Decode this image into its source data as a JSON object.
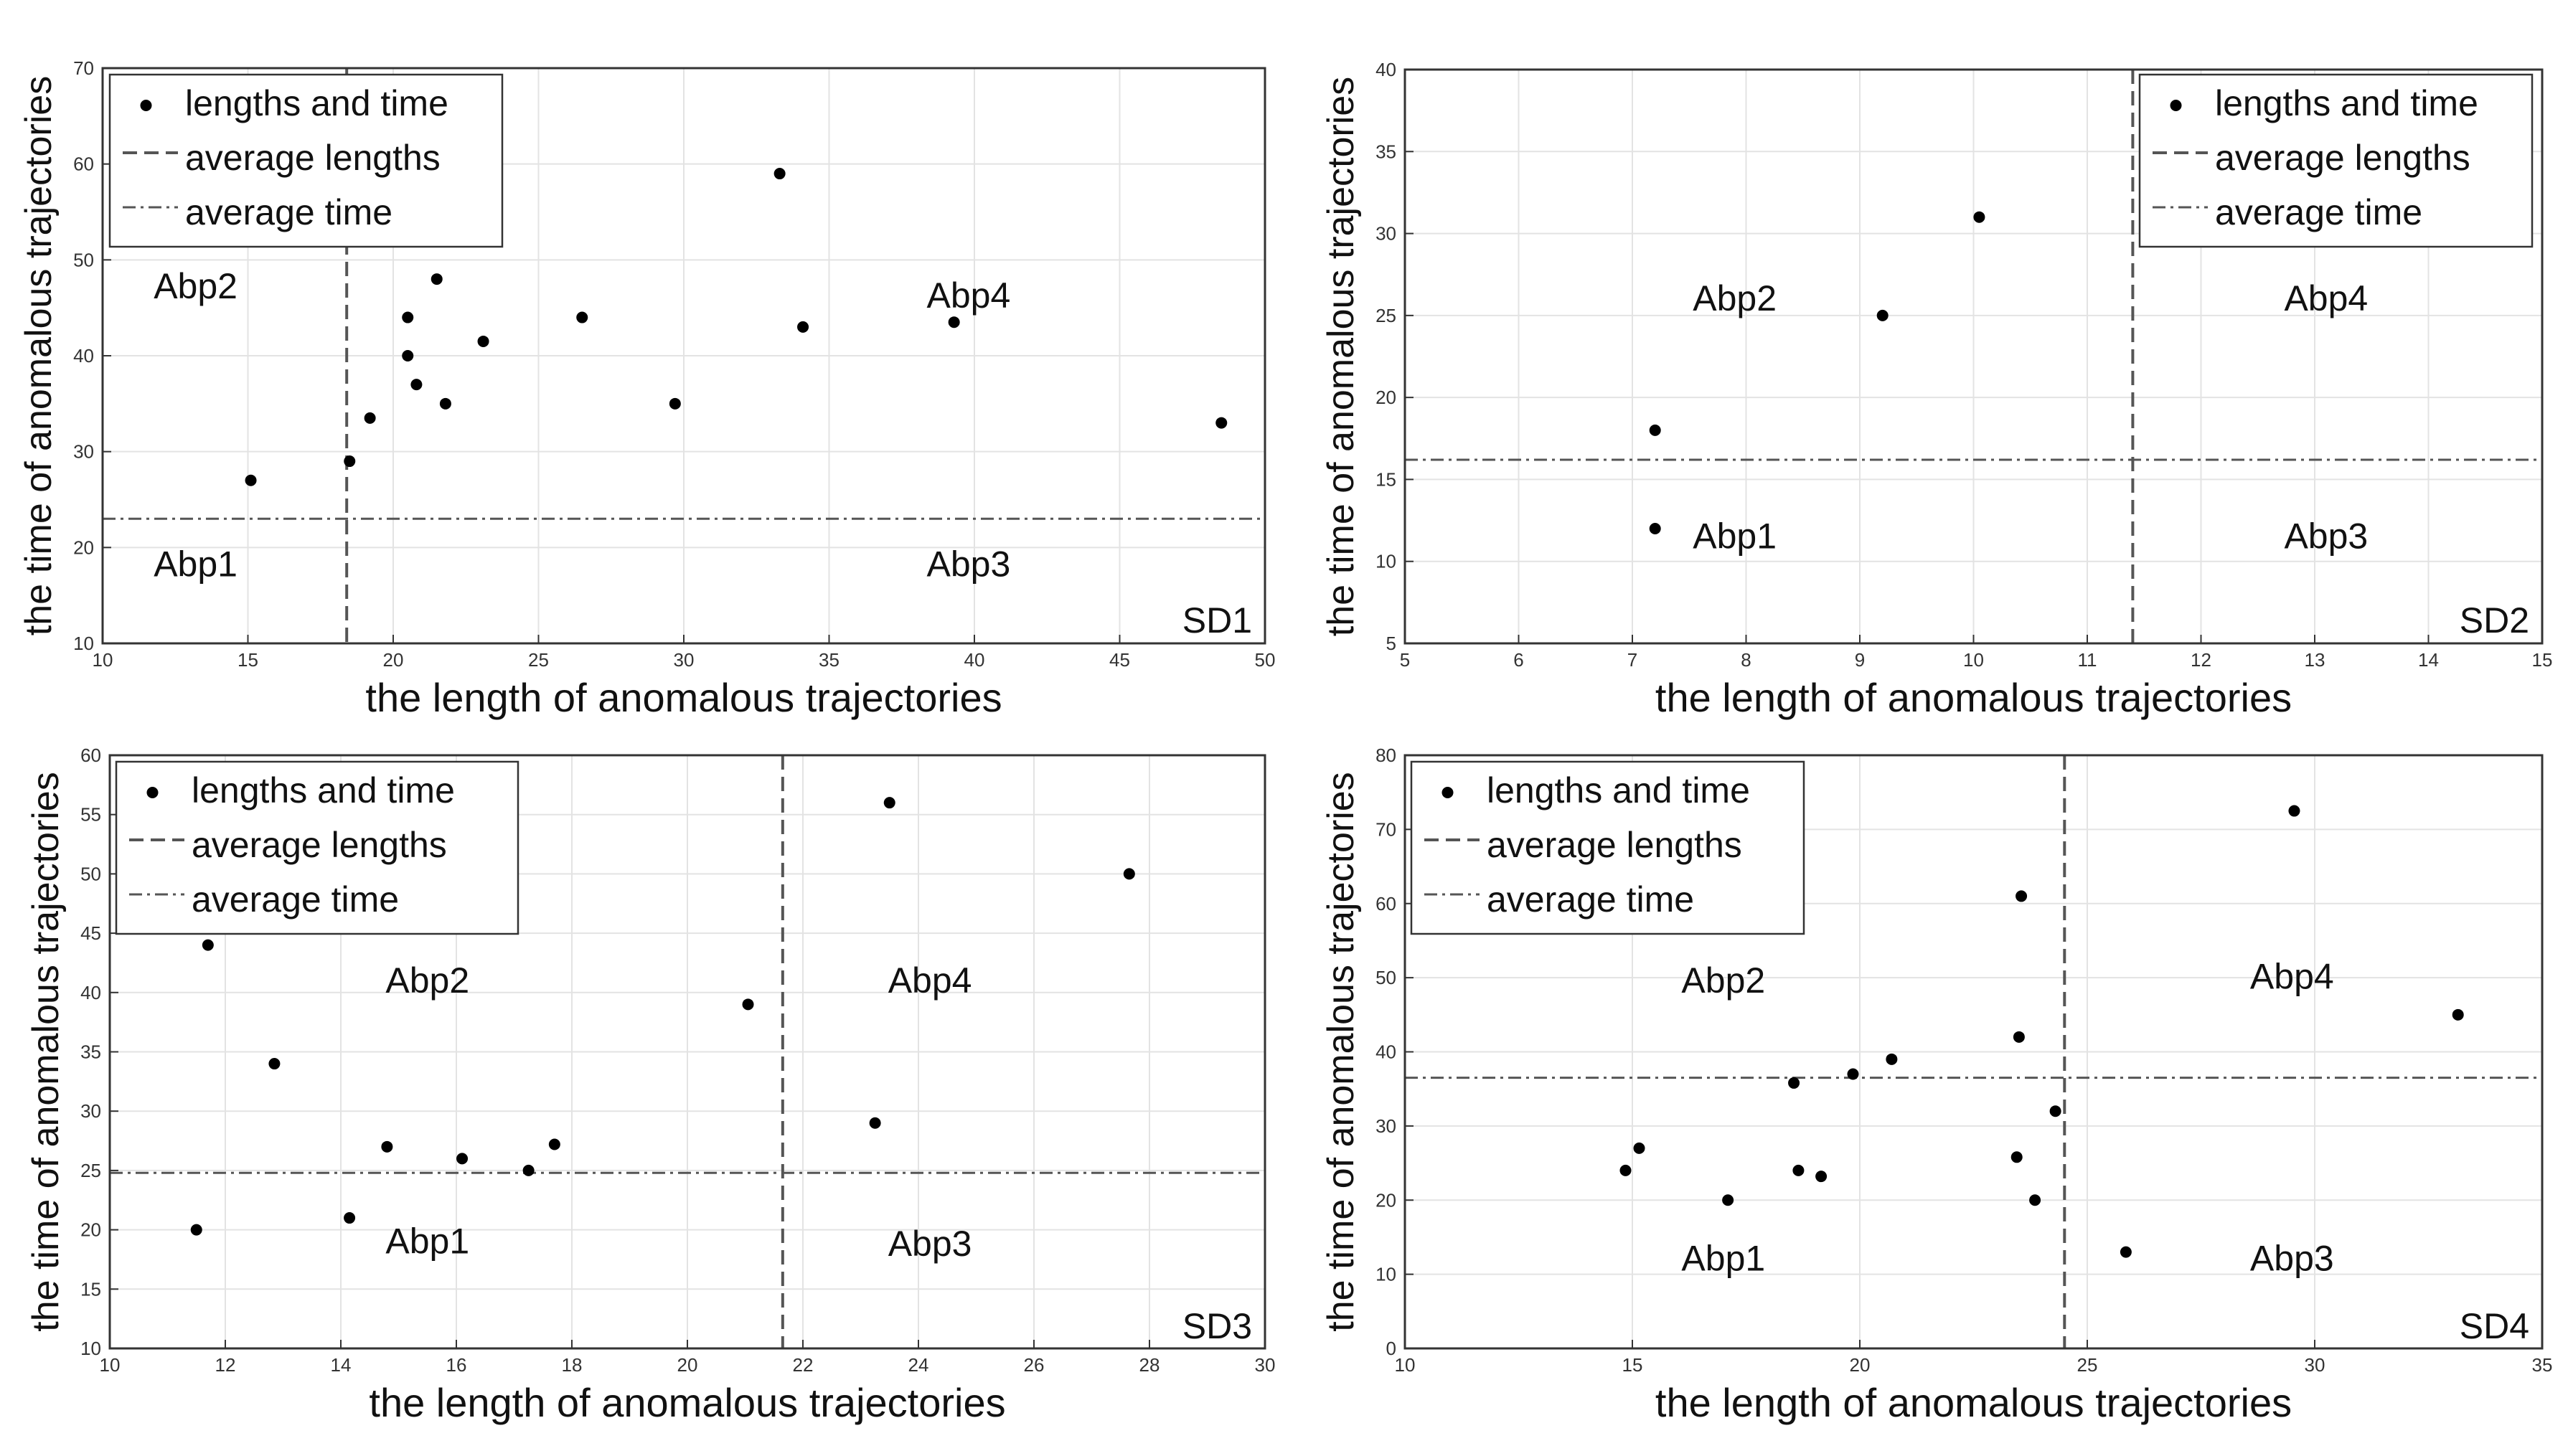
{
  "colors": {
    "points": "#000000",
    "grid": "#e3e3e3",
    "frame": "#333333",
    "average_line": "#555555",
    "text": "#111111"
  },
  "chart_data": [
    {
      "type": "scatter",
      "id": "SD1",
      "dataset_label": "SD1",
      "xlabel": "the length of anomalous trajectories",
      "ylabel": "the time of anomalous trajectories",
      "xlim": [
        10,
        50
      ],
      "ylim": [
        10,
        70
      ],
      "xticks": [
        10,
        15,
        20,
        25,
        30,
        35,
        40,
        45,
        50
      ],
      "yticks": [
        10,
        20,
        30,
        40,
        50,
        60,
        70
      ],
      "grid": true,
      "legend": {
        "position": "top-left",
        "entries": [
          "lengths and time",
          "average lengths",
          "average time"
        ]
      },
      "avg_length": 18.4,
      "avg_time": 23,
      "regions": {
        "abp1": {
          "label": "Abp1",
          "x": 13.2,
          "y": 17
        },
        "abp2": {
          "label": "Abp2",
          "x": 13.2,
          "y": 46
        },
        "abp3": {
          "label": "Abp3",
          "x": 39.8,
          "y": 17
        },
        "abp4": {
          "label": "Abp4",
          "x": 39.8,
          "y": 45
        }
      },
      "points": [
        [
          15.1,
          27
        ],
        [
          18.5,
          29
        ],
        [
          19.2,
          33.5
        ],
        [
          20.5,
          40
        ],
        [
          20.5,
          44
        ],
        [
          20.8,
          37
        ],
        [
          21.5,
          48
        ],
        [
          21.8,
          35
        ],
        [
          23.1,
          41.5
        ],
        [
          26.5,
          44
        ],
        [
          29.7,
          35
        ],
        [
          33.3,
          59
        ],
        [
          34.1,
          43
        ],
        [
          39.3,
          43.5
        ],
        [
          48.5,
          33
        ]
      ]
    },
    {
      "type": "scatter",
      "id": "SD2",
      "dataset_label": "SD2",
      "xlabel": "the length of anomalous trajectories",
      "ylabel": "the time of anomalous trajectories",
      "xlim": [
        5,
        15
      ],
      "ylim": [
        5,
        40
      ],
      "xticks": [
        5,
        6,
        7,
        8,
        9,
        10,
        11,
        12,
        13,
        14,
        15
      ],
      "yticks": [
        5,
        10,
        15,
        20,
        25,
        30,
        35,
        40
      ],
      "grid": true,
      "legend": {
        "position": "top-right",
        "entries": [
          "lengths and time",
          "average lengths",
          "average time"
        ]
      },
      "avg_length": 11.4,
      "avg_time": 16.2,
      "regions": {
        "abp1": {
          "label": "Abp1",
          "x": 7.9,
          "y": 10.8
        },
        "abp2": {
          "label": "Abp2",
          "x": 7.9,
          "y": 25.3
        },
        "abp3": {
          "label": "Abp3",
          "x": 13.1,
          "y": 10.8
        },
        "abp4": {
          "label": "Abp4",
          "x": 13.1,
          "y": 25.3
        }
      },
      "points": [
        [
          7.2,
          12
        ],
        [
          7.2,
          18
        ],
        [
          9.2,
          25
        ],
        [
          10.05,
          31
        ]
      ]
    },
    {
      "type": "scatter",
      "id": "SD3",
      "dataset_label": "SD3",
      "xlabel": "the length of anomalous trajectories",
      "ylabel": "the time of anomalous trajectories",
      "xlim": [
        10,
        30
      ],
      "ylim": [
        10,
        60
      ],
      "xticks": [
        10,
        12,
        14,
        16,
        18,
        20,
        22,
        24,
        26,
        28,
        30
      ],
      "yticks": [
        10,
        15,
        20,
        25,
        30,
        35,
        40,
        45,
        50,
        55,
        60
      ],
      "grid": true,
      "legend": {
        "position": "top-left",
        "entries": [
          "lengths and time",
          "average lengths",
          "average time"
        ]
      },
      "avg_length": 21.65,
      "avg_time": 24.8,
      "regions": {
        "abp1": {
          "label": "Abp1",
          "x": 15.5,
          "y": 18
        },
        "abp2": {
          "label": "Abp2",
          "x": 15.5,
          "y": 40
        },
        "abp3": {
          "label": "Abp3",
          "x": 24.2,
          "y": 17.8
        },
        "abp4": {
          "label": "Abp4",
          "x": 24.2,
          "y": 40
        }
      },
      "points": [
        [
          11.5,
          20
        ],
        [
          11.7,
          44
        ],
        [
          12.85,
          34
        ],
        [
          14.15,
          21
        ],
        [
          14.8,
          27
        ],
        [
          16.1,
          26
        ],
        [
          17.25,
          25
        ],
        [
          17.7,
          27.2
        ],
        [
          21.05,
          39
        ],
        [
          23.25,
          29
        ],
        [
          23.5,
          56
        ],
        [
          27.65,
          50
        ]
      ]
    },
    {
      "type": "scatter",
      "id": "SD4",
      "dataset_label": "SD4",
      "xlabel": "the length of anomalous trajectories",
      "ylabel": "the time of anomalous trajectories",
      "xlim": [
        10,
        35
      ],
      "ylim": [
        0,
        80
      ],
      "xticks": [
        10,
        15,
        20,
        25,
        30,
        35
      ],
      "yticks": [
        0,
        10,
        20,
        30,
        40,
        50,
        60,
        70,
        80
      ],
      "grid": true,
      "legend": {
        "position": "top-left",
        "entries": [
          "lengths and time",
          "average lengths",
          "average time"
        ]
      },
      "avg_length": 24.5,
      "avg_time": 36.5,
      "regions": {
        "abp1": {
          "label": "Abp1",
          "x": 17,
          "y": 10.5
        },
        "abp2": {
          "label": "Abp2",
          "x": 17,
          "y": 48
        },
        "abp3": {
          "label": "Abp3",
          "x": 29.5,
          "y": 10.5
        },
        "abp4": {
          "label": "Abp4",
          "x": 29.5,
          "y": 48.5
        }
      },
      "points": [
        [
          14.85,
          24
        ],
        [
          15.15,
          27
        ],
        [
          17.1,
          20
        ],
        [
          18.55,
          35.8
        ],
        [
          18.65,
          24
        ],
        [
          19.15,
          23.2
        ],
        [
          19.85,
          37
        ],
        [
          20.7,
          39
        ],
        [
          23.45,
          25.8
        ],
        [
          23.5,
          42
        ],
        [
          23.55,
          61
        ],
        [
          23.85,
          20
        ],
        [
          24.3,
          32
        ],
        [
          25.85,
          13
        ],
        [
          29.55,
          72.5
        ],
        [
          33.15,
          45
        ]
      ]
    }
  ]
}
